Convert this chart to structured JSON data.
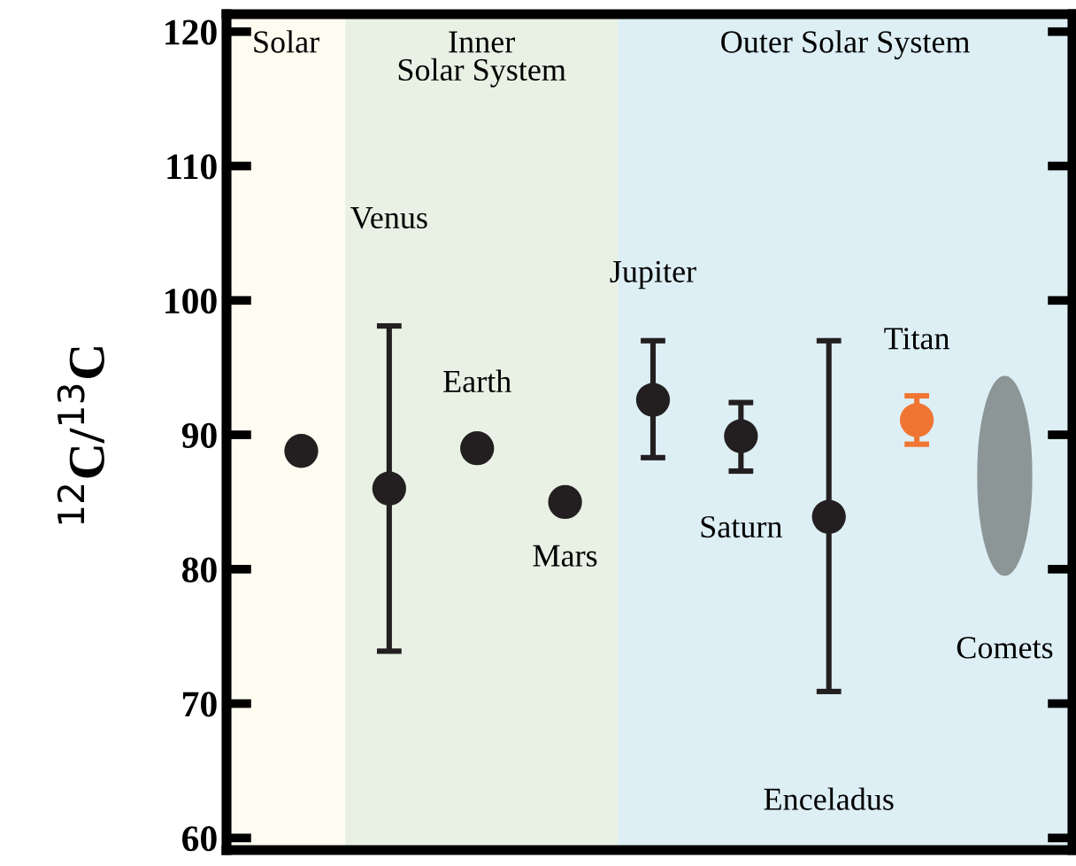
{
  "chart_data": {
    "type": "scatter",
    "ylabel": "$^{12}$C/$^{13}$C",
    "categories": [
      null,
      null,
      null,
      null,
      null,
      null,
      null,
      null,
      null
    ],
    "ylim": [
      59.1,
      121.3
    ],
    "yticks": [
      60,
      70,
      80,
      90,
      100,
      110,
      120
    ],
    "tick_labels": "y",
    "marker": "circle",
    "series": [
      {
        "color": "#231f20",
        "values": [
          88.8,
          86.0,
          89.0,
          85.0,
          92.6,
          89.9,
          83.9,
          null,
          null
        ],
        "errors": [
          null,
          [
            73.9,
            98.1
          ],
          null,
          null,
          [
            88.3,
            97.0
          ],
          [
            87.3,
            92.4
          ],
          [
            70.9,
            97.0
          ],
          null,
          null
        ]
      },
      {
        "color": "#f07532",
        "values": [
          null,
          null,
          null,
          null,
          null,
          null,
          null,
          91.1,
          null
        ],
        "errors": [
          null,
          null,
          null,
          null,
          null,
          null,
          null,
          [
            89.3,
            92.9
          ],
          null
        ]
      },
      {
        "type": "bar",
        "color": "#8c9696",
        "base": [
          null,
          null,
          null,
          null,
          null,
          null,
          null,
          null,
          79.5
        ],
        "values": [
          null,
          null,
          null,
          null,
          null,
          null,
          null,
          null,
          14.9
        ]
      }
    ],
    "annotations": [
      "Solar",
      "Inner\nSolar System",
      "Outer Solar System",
      "Venus",
      "Earth",
      "Mars",
      "Jupiter",
      "Saturn",
      "Enceladus",
      "Titan",
      "Comets"
    ]
  }
}
